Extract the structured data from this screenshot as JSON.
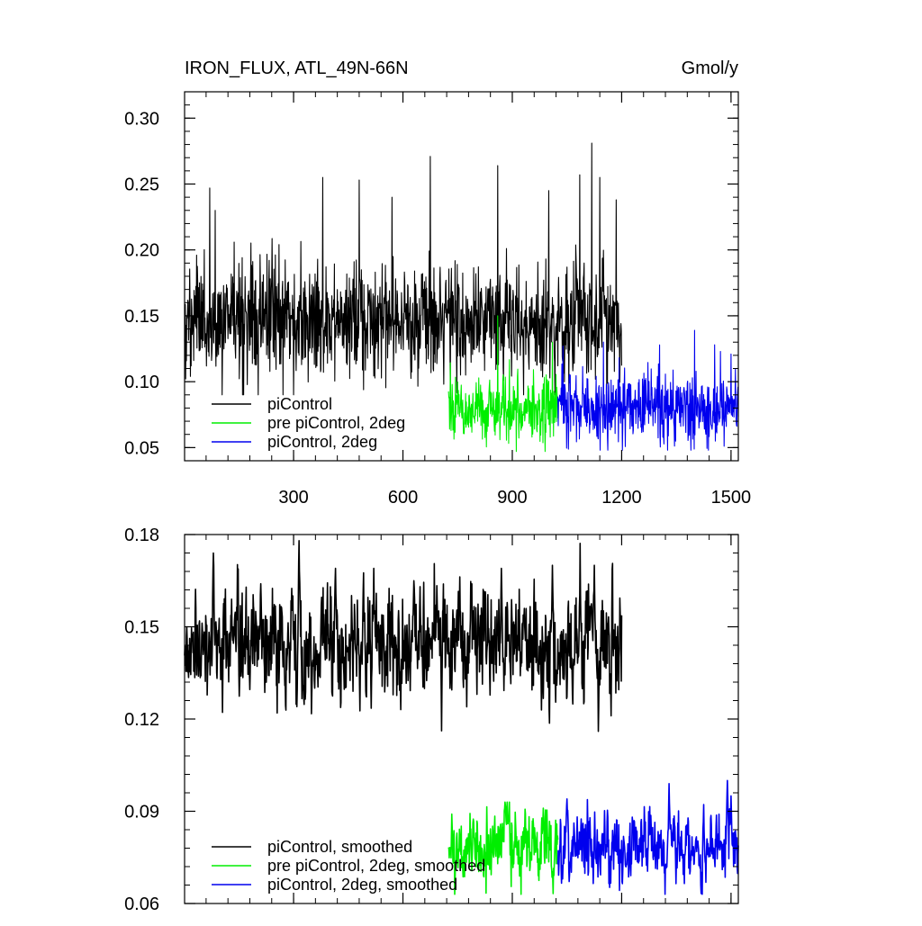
{
  "chart_data": [
    {
      "type": "line",
      "title": "IRON_FLUX, ATL_49N-66N",
      "units_label": "Gmol/y",
      "xlim": [
        1,
        1520
      ],
      "ylim": [
        0.04,
        0.32
      ],
      "x_ticks": [
        300,
        600,
        900,
        1200,
        1500
      ],
      "x_tick_labels": [
        "300",
        "600",
        "900",
        "1200",
        "1500"
      ],
      "y_ticks": [
        0.05,
        0.1,
        0.15,
        0.2,
        0.25,
        0.3
      ],
      "y_tick_labels": [
        "0.05",
        "0.10",
        "0.15",
        "0.20",
        "0.25",
        "0.30"
      ],
      "grid": false,
      "legend_position": "bottom-left",
      "series": [
        {
          "name": "piControl",
          "color": "#000000",
          "x_range": [
            1,
            1200
          ],
          "mean": 0.145,
          "spread": 0.022,
          "min": 0.09,
          "max": 0.28,
          "peaks": [
            [
              70,
              0.247
            ],
            [
              85,
              0.23
            ],
            [
              380,
              0.255
            ],
            [
              480,
              0.253
            ],
            [
              570,
              0.24
            ],
            [
              675,
              0.271
            ],
            [
              860,
              0.264
            ],
            [
              1000,
              0.245
            ],
            [
              1085,
              0.257
            ],
            [
              1118,
              0.281
            ],
            [
              1140,
              0.255
            ],
            [
              1185,
              0.238
            ]
          ]
        },
        {
          "name": "pre piControl, 2deg",
          "color": "#00ee00",
          "x_range": [
            725,
            1025
          ],
          "mean": 0.078,
          "spread": 0.013,
          "min": 0.047,
          "max": 0.15,
          "peaks": [
            [
              860,
              0.15
            ],
            [
              1010,
              0.13
            ]
          ]
        },
        {
          "name": "piControl, 2deg",
          "color": "#0000ee",
          "x_range": [
            1025,
            1520
          ],
          "mean": 0.08,
          "spread": 0.013,
          "min": 0.048,
          "max": 0.14,
          "peaks": [
            [
              1150,
              0.13
            ],
            [
              1400,
              0.139
            ],
            [
              1455,
              0.128
            ],
            [
              1500,
              0.121
            ]
          ]
        }
      ]
    },
    {
      "type": "line",
      "xlim": [
        1,
        1520
      ],
      "ylim": [
        0.06,
        0.18
      ],
      "x_ticks": [
        300,
        600,
        900,
        1200,
        1500
      ],
      "y_ticks": [
        0.06,
        0.09,
        0.12,
        0.15,
        0.18
      ],
      "y_tick_labels": [
        "0.06",
        "0.09",
        "0.12",
        "0.15",
        "0.18"
      ],
      "grid": false,
      "legend_position": "bottom-left",
      "series": [
        {
          "name": "piControl, smoothed",
          "color": "#000000",
          "x_range": [
            1,
            1200
          ],
          "mean": 0.144,
          "spread": 0.008,
          "min": 0.116,
          "max": 0.178,
          "peaks": [
            [
              80,
              0.174
            ],
            [
              210,
              0.164
            ],
            [
              315,
              0.178
            ],
            [
              415,
              0.169
            ],
            [
              520,
              0.169
            ],
            [
              630,
              0.165
            ],
            [
              870,
              0.169
            ],
            [
              1010,
              0.17
            ],
            [
              1125,
              0.17
            ]
          ]
        },
        {
          "name": "pre piControl, 2deg, smoothed",
          "color": "#00ee00",
          "x_range": [
            725,
            1025
          ],
          "mean": 0.078,
          "spread": 0.005,
          "min": 0.063,
          "max": 0.093,
          "peaks": [
            [
              880,
              0.093
            ],
            [
              985,
              0.091
            ]
          ]
        },
        {
          "name": "piControl, 2deg, smoothed",
          "color": "#0000ee",
          "x_range": [
            1025,
            1520
          ],
          "mean": 0.078,
          "spread": 0.005,
          "min": 0.063,
          "max": 0.1,
          "peaks": [
            [
              1050,
              0.094
            ],
            [
              1330,
              0.099
            ],
            [
              1490,
              0.1
            ],
            [
              1500,
              0.095
            ]
          ]
        }
      ]
    }
  ]
}
